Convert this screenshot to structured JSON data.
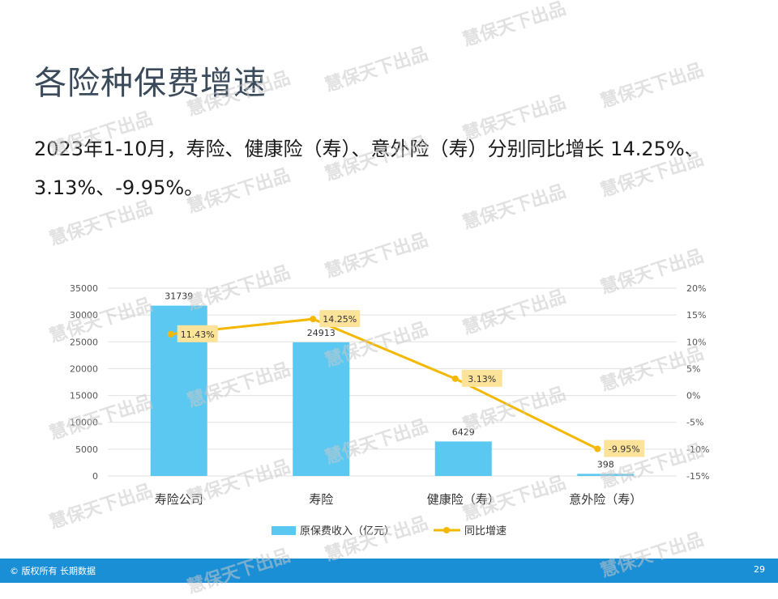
{
  "title": "各险种保费增速",
  "summary": "2023年1-10月，寿险、健康险（寿）、意外险（寿）分别同比增长 14.25%、3.13%、-9.95%。",
  "watermark": "慧保天下出品",
  "footer": {
    "copyright": "© 版权所有 长期数据",
    "page_number": "29"
  },
  "colors": {
    "bar": "#5bc8f2",
    "line": "#f5b800",
    "label_box": "#fde39a",
    "footer": "#1b8fd6",
    "title": "#3b4a5a"
  },
  "chart_data": {
    "type": "bar",
    "categories": [
      "寿险公司",
      "寿险",
      "健康险（寿）",
      "意外险（寿）"
    ],
    "series": [
      {
        "name": "原保费收入（亿元）",
        "type": "bar",
        "axis": "left",
        "values": [
          31739,
          24913,
          6429,
          398
        ],
        "labels": [
          "31739",
          "24913",
          "6429",
          "398"
        ]
      },
      {
        "name": "同比增速",
        "type": "line",
        "axis": "right",
        "values": [
          11.43,
          14.25,
          3.13,
          -9.95
        ],
        "labels": [
          "11.43%",
          "14.25%",
          "3.13%",
          "-9.95%"
        ]
      }
    ],
    "y_left": {
      "min": 0,
      "max": 35000,
      "ticks": [
        "0",
        "5000",
        "10000",
        "15000",
        "20000",
        "25000",
        "30000",
        "35000"
      ]
    },
    "y_right": {
      "min": -15,
      "max": 20,
      "ticks": [
        "-15%",
        "-10%",
        "-5%",
        "0%",
        "5%",
        "10%",
        "15%",
        "20%"
      ]
    },
    "grid": true,
    "legend": "bottom"
  }
}
